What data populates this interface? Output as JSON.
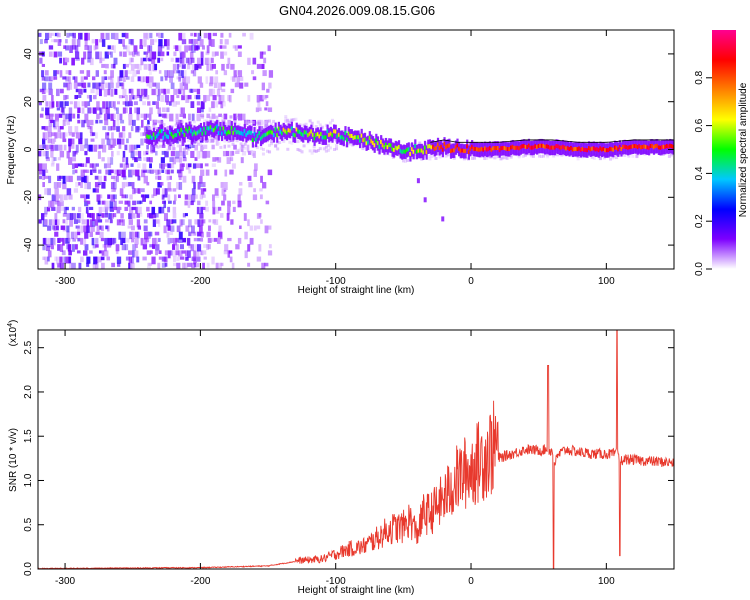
{
  "figure": {
    "title": "GN04.2026.009.08.15.G06"
  },
  "chart_data": [
    {
      "type": "heatmap",
      "xlabel": "Height of straight line (km)",
      "ylabel": "Frequency (Hz)",
      "xlim": [
        -320,
        150
      ],
      "ylim": [
        -50,
        50
      ],
      "xticks": [
        -300,
        -200,
        -100,
        0,
        100
      ],
      "yticks": [
        -40,
        -20,
        0,
        20,
        40
      ],
      "colorbar": {
        "label": "Normalized spectral amplitude",
        "range": [
          0,
          1
        ],
        "ticks": [
          "0.0",
          "0.2",
          "0.4",
          "0.6",
          "0.8"
        ],
        "colormap": [
          "#ffffff",
          "#7d00ff",
          "#0000ff",
          "#00c8ff",
          "#00ff00",
          "#ffff00",
          "#ff8000",
          "#ff0000",
          "#ff0090"
        ]
      },
      "ridge": {
        "x": [
          -230,
          -200,
          -180,
          -160,
          -150,
          -140,
          -120,
          -100,
          -80,
          -60,
          -50,
          -40,
          -30,
          -20,
          -10,
          0,
          20,
          40,
          60,
          80,
          100,
          120,
          150
        ],
        "y": [
          6,
          8,
          8,
          5,
          6,
          8,
          6,
          6,
          4,
          1,
          -1,
          0,
          0,
          1,
          0,
          0,
          0,
          1,
          1,
          0,
          0,
          1,
          1
        ]
      },
      "noise_region": [
        -320,
        -150
      ]
    },
    {
      "type": "line",
      "xlabel": "Height of straight line (km)",
      "ylabel": "SNR (10 * v/v)",
      "y_multiplier": "(x10",
      "y_multiplier_exp": "4",
      "yticks": [
        "0.0",
        "0.5",
        "1.0",
        "1.5",
        "2.0",
        "2.5"
      ],
      "xticks": [
        -300,
        -200,
        -100,
        0,
        100
      ],
      "xlim": [
        -320,
        150
      ],
      "ylim": [
        0,
        2.7
      ],
      "color": "#e8392d",
      "series": [
        {
          "x": [
            -320,
            -200,
            -150,
            -130,
            -110,
            -100,
            -90,
            -80,
            -70,
            -60,
            -50,
            -45,
            -40,
            -35,
            -30,
            -20,
            -10,
            0,
            10,
            20,
            30,
            40,
            50,
            55,
            60,
            62,
            65,
            70,
            80,
            90,
            100,
            105,
            108,
            110,
            115,
            130,
            150
          ],
          "y": [
            0.0,
            0.01,
            0.03,
            0.08,
            0.1,
            0.15,
            0.2,
            0.22,
            0.3,
            0.4,
            0.42,
            0.5,
            0.35,
            0.55,
            0.55,
            0.7,
            0.9,
            1.0,
            1.12,
            1.25,
            1.3,
            1.35,
            1.34,
            1.35,
            1.33,
            1.2,
            1.3,
            1.35,
            1.32,
            1.3,
            1.3,
            1.3,
            1.3,
            1.22,
            1.24,
            1.22,
            1.2
          ]
        }
      ],
      "spikes": [
        {
          "x": 57,
          "y": 2.3
        },
        {
          "x": 61,
          "y": 0.0
        },
        {
          "x": 108,
          "y": 2.7
        },
        {
          "x": 110,
          "y": 0.15
        }
      ]
    }
  ]
}
